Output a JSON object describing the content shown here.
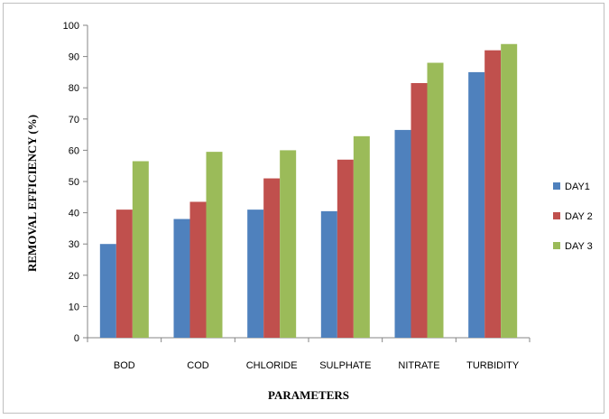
{
  "chart_data": {
    "type": "bar",
    "title": "",
    "xlabel": "PARAMETERS",
    "ylabel": "REMOVAL EFFICIENCY (%)",
    "categories": [
      "BOD",
      "COD",
      "CHLORIDE",
      "SULPHATE",
      "NITRATE",
      "TURBIDITY"
    ],
    "series": [
      {
        "name": "DAY1",
        "color": "#4F81BD",
        "values": [
          30,
          38,
          41,
          40.5,
          66.5,
          85
        ]
      },
      {
        "name": "DAY 2",
        "color": "#C0504D",
        "values": [
          41,
          43.5,
          51,
          57,
          81.5,
          92
        ]
      },
      {
        "name": "DAY 3",
        "color": "#9BBB59",
        "values": [
          56.5,
          59.5,
          60,
          64.5,
          88,
          94
        ]
      }
    ],
    "ylim": [
      0,
      100
    ],
    "yticks": [
      0,
      10,
      20,
      30,
      40,
      50,
      60,
      70,
      80,
      90,
      100
    ],
    "grid": false,
    "legend_position": "right"
  }
}
